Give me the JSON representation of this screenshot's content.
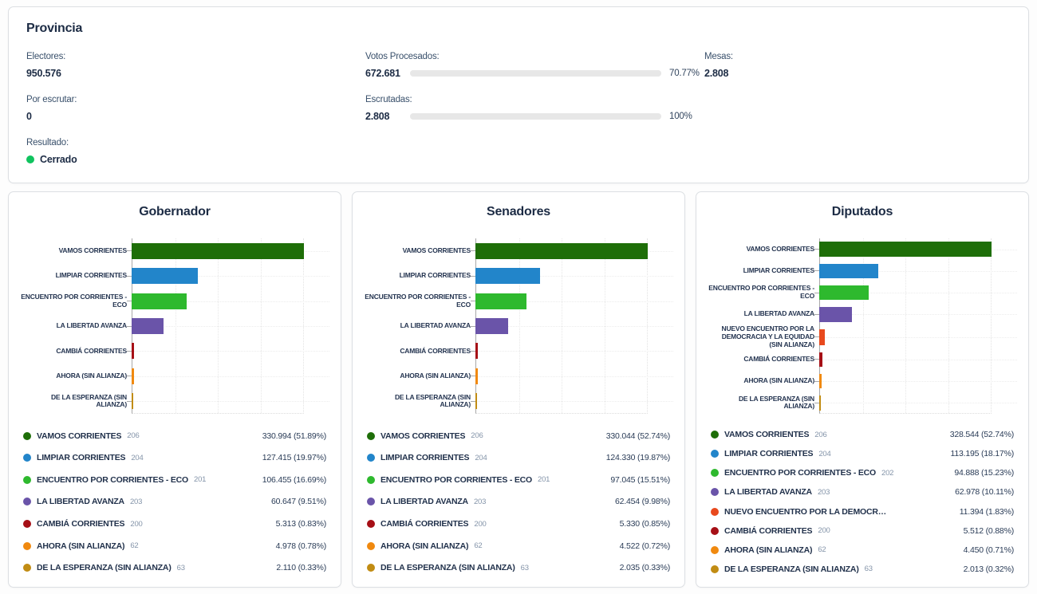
{
  "provincia": {
    "title": "Provincia",
    "electores": {
      "label": "Electores:",
      "value": "950.576"
    },
    "por_escrutar": {
      "label": "Por escrutar:",
      "value": "0"
    },
    "resultado": {
      "label": "Resultado:",
      "value": "Cerrado",
      "status_color": "#10c35f"
    },
    "votos_procesados": {
      "label": "Votos Procesados:",
      "value": "672.681",
      "percent": 70.77,
      "percent_label": "70.77%"
    },
    "escrutadas": {
      "label": "Escrutadas:",
      "value": "2.808",
      "percent": 100,
      "percent_label": "100%"
    },
    "mesas": {
      "label": "Mesas:",
      "value": "2.808"
    },
    "progress_color": "#7ecbc5"
  },
  "chart_data": [
    {
      "type": "bar",
      "orientation": "horizontal",
      "title": "Gobernador",
      "grid": "dotted",
      "parties": [
        {
          "category": "VAMOS CORRIENTES",
          "legend_label": "VAMOS CORRIENTES",
          "list_number": "206",
          "votes": 330994,
          "percent": 51.89,
          "value_label": "330.994 (51.89%)",
          "color": "#1e6e08"
        },
        {
          "category": "LIMPIAR CORRIENTES",
          "legend_label": "LIMPIAR CORRIENTES",
          "list_number": "204",
          "votes": 127415,
          "percent": 19.97,
          "value_label": "127.415 (19.97%)",
          "color": "#2285ca"
        },
        {
          "category": "ENCUENTRO POR CORRIENTES - ECO",
          "legend_label": "ENCUENTRO POR CORRIENTES - ECO",
          "list_number": "201",
          "votes": 106455,
          "percent": 16.69,
          "value_label": "106.455 (16.69%)",
          "color": "#2eb92e"
        },
        {
          "category": "LA LIBERTAD AVANZA",
          "legend_label": "LA LIBERTAD AVANZA",
          "list_number": "203",
          "votes": 60647,
          "percent": 9.51,
          "value_label": "60.647 (9.51%)",
          "color": "#6a54a9"
        },
        {
          "category": "CAMBIÁ CORRIENTES",
          "legend_label": "CAMBIÁ CORRIENTES",
          "list_number": "200",
          "votes": 5313,
          "percent": 0.83,
          "value_label": "5.313 (0.83%)",
          "color": "#a60f16"
        },
        {
          "category": "AHORA (SIN ALIANZA)",
          "legend_label": "AHORA (SIN ALIANZA)",
          "list_number": "62",
          "votes": 4978,
          "percent": 0.78,
          "value_label": "4.978 (0.78%)",
          "color": "#f0890f"
        },
        {
          "category": "DE LA ESPERANZA (SIN ALIANZA)",
          "legend_label": "DE LA ESPERANZA (SIN ALIANZA)",
          "list_number": "63",
          "votes": 2110,
          "percent": 0.33,
          "value_label": "2.110 (0.33%)",
          "color": "#c18c13"
        }
      ]
    },
    {
      "type": "bar",
      "orientation": "horizontal",
      "title": "Senadores",
      "grid": "dotted",
      "parties": [
        {
          "category": "VAMOS CORRIENTES",
          "legend_label": "VAMOS CORRIENTES",
          "list_number": "206",
          "votes": 330044,
          "percent": 52.74,
          "value_label": "330.044 (52.74%)",
          "color": "#1e6e08"
        },
        {
          "category": "LIMPIAR CORRIENTES",
          "legend_label": "LIMPIAR CORRIENTES",
          "list_number": "204",
          "votes": 124330,
          "percent": 19.87,
          "value_label": "124.330 (19.87%)",
          "color": "#2285ca"
        },
        {
          "category": "ENCUENTRO POR CORRIENTES - ECO",
          "legend_label": "ENCUENTRO POR CORRIENTES - ECO",
          "list_number": "201",
          "votes": 97045,
          "percent": 15.51,
          "value_label": "97.045 (15.51%)",
          "color": "#2eb92e"
        },
        {
          "category": "LA LIBERTAD AVANZA",
          "legend_label": "LA LIBERTAD AVANZA",
          "list_number": "203",
          "votes": 62454,
          "percent": 9.98,
          "value_label": "62.454 (9.98%)",
          "color": "#6a54a9"
        },
        {
          "category": "CAMBIÁ CORRIENTES",
          "legend_label": "CAMBIÁ CORRIENTES",
          "list_number": "200",
          "votes": 5330,
          "percent": 0.85,
          "value_label": "5.330 (0.85%)",
          "color": "#a60f16"
        },
        {
          "category": "AHORA (SIN ALIANZA)",
          "legend_label": "AHORA (SIN ALIANZA)",
          "list_number": "62",
          "votes": 4522,
          "percent": 0.72,
          "value_label": "4.522 (0.72%)",
          "color": "#f0890f"
        },
        {
          "category": "DE LA ESPERANZA (SIN ALIANZA)",
          "legend_label": "DE LA ESPERANZA (SIN ALIANZA)",
          "list_number": "63",
          "votes": 2035,
          "percent": 0.33,
          "value_label": "2.035 (0.33%)",
          "color": "#c18c13"
        }
      ]
    },
    {
      "type": "bar",
      "orientation": "horizontal",
      "title": "Diputados",
      "grid": "dotted",
      "parties": [
        {
          "category": "VAMOS CORRIENTES",
          "legend_label": "VAMOS CORRIENTES",
          "list_number": "206",
          "votes": 328544,
          "percent": 52.74,
          "value_label": "328.544 (52.74%)",
          "color": "#1e6e08"
        },
        {
          "category": "LIMPIAR CORRIENTES",
          "legend_label": "LIMPIAR CORRIENTES",
          "list_number": "204",
          "votes": 113195,
          "percent": 18.17,
          "value_label": "113.195 (18.17%)",
          "color": "#2285ca"
        },
        {
          "category": "ENCUENTRO POR CORRIENTES - ECO",
          "legend_label": "ENCUENTRO POR CORRIENTES - ECO",
          "list_number": "202",
          "votes": 94888,
          "percent": 15.23,
          "value_label": "94.888 (15.23%)",
          "color": "#2eb92e"
        },
        {
          "category": "LA LIBERTAD AVANZA",
          "legend_label": "LA LIBERTAD AVANZA",
          "list_number": "203",
          "votes": 62978,
          "percent": 10.11,
          "value_label": "62.978 (10.11%)",
          "color": "#6a54a9"
        },
        {
          "category": "NUEVO ENCUENTRO POR LA DEMOCRACIA Y LA EQUIDAD (SIN ALIANZA)",
          "legend_label": "NUEVO ENCUENTRO POR LA DEMOCR…",
          "list_number": "",
          "votes": 11394,
          "percent": 1.83,
          "value_label": "11.394 (1.83%)",
          "color": "#e8491d"
        },
        {
          "category": "CAMBIÁ CORRIENTES",
          "legend_label": "CAMBIÁ CORRIENTES",
          "list_number": "200",
          "votes": 5512,
          "percent": 0.88,
          "value_label": "5.512 (0.88%)",
          "color": "#a60f16"
        },
        {
          "category": "AHORA (SIN ALIANZA)",
          "legend_label": "AHORA (SIN ALIANZA)",
          "list_number": "62",
          "votes": 4450,
          "percent": 0.71,
          "value_label": "4.450 (0.71%)",
          "color": "#f0890f"
        },
        {
          "category": "DE LA ESPERANZA (SIN ALIANZA)",
          "legend_label": "DE LA ESPERANZA (SIN ALIANZA)",
          "list_number": "63",
          "votes": 2013,
          "percent": 0.32,
          "value_label": "2.013 (0.32%)",
          "color": "#c18c13"
        }
      ]
    }
  ]
}
